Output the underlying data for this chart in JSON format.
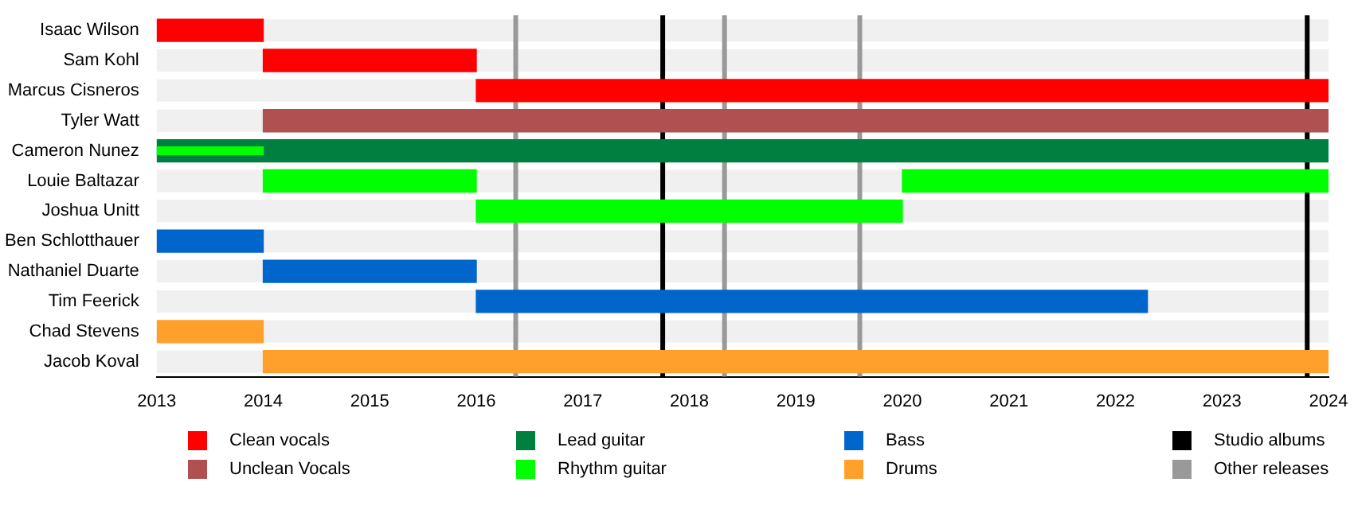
{
  "chart_data": {
    "type": "bar",
    "orientation": "horizontal",
    "legend": "bottom",
    "grid": false,
    "categories": [
      "Isaac Wilson",
      "Sam Kohl",
      "Marcus Cisneros",
      "Tyler Watt",
      "Cameron Nunez",
      "Louie Baltazar",
      "Joshua Unitt",
      "Ben Schlotthauer",
      "Nathaniel Duarte",
      "Tim Feerick",
      "Chad Stevens",
      "Jacob Koval"
    ],
    "xlim": [
      2013,
      2024
    ],
    "xticks": [
      2013,
      2014,
      2015,
      2016,
      2017,
      2018,
      2019,
      2020,
      2021,
      2022,
      2023,
      2024
    ],
    "series": [
      {
        "name": "Clean vocals",
        "color": "#ff0000",
        "base": [
          2013,
          2014,
          2016,
          null,
          null,
          null,
          null,
          null,
          null,
          null,
          null,
          null
        ],
        "values": [
          1,
          2,
          8,
          null,
          null,
          null,
          null,
          null,
          null,
          null,
          null,
          null
        ]
      },
      {
        "name": "Unclean Vocals",
        "color": "#b05050",
        "base": [
          null,
          null,
          null,
          2014,
          null,
          null,
          null,
          null,
          null,
          null,
          null,
          null
        ],
        "values": [
          null,
          null,
          null,
          10,
          null,
          null,
          null,
          null,
          null,
          null,
          null,
          null
        ]
      },
      {
        "name": "Lead guitar",
        "color": "#008040",
        "base": [
          null,
          null,
          null,
          null,
          2013,
          null,
          null,
          null,
          null,
          null,
          null,
          null
        ],
        "values": [
          null,
          null,
          null,
          null,
          11,
          null,
          null,
          null,
          null,
          null,
          null,
          null
        ]
      },
      {
        "name": "Rhythm guitar",
        "color": "#00ff00",
        "base": [
          null,
          null,
          null,
          null,
          2013,
          2014,
          2016,
          null,
          null,
          null,
          null,
          null
        ],
        "values": [
          null,
          null,
          null,
          null,
          1,
          2,
          4,
          null,
          null,
          null,
          null,
          null
        ]
      },
      {
        "color": "#00ff00",
        "base": [
          null,
          null,
          null,
          null,
          null,
          2020,
          null,
          null,
          null,
          null,
          null,
          null
        ],
        "values": [
          null,
          null,
          null,
          null,
          null,
          4,
          null,
          null,
          null,
          null,
          null,
          null
        ]
      },
      {
        "name": "Bass",
        "color": "#0066cc",
        "base": [
          null,
          null,
          null,
          null,
          null,
          null,
          null,
          2013,
          2014,
          2016,
          null,
          null
        ],
        "values": [
          null,
          null,
          null,
          null,
          null,
          null,
          null,
          1,
          2,
          6.3,
          null,
          null
        ]
      },
      {
        "name": "Drums",
        "color": "#ffa02c",
        "base": [
          null,
          null,
          null,
          null,
          null,
          null,
          null,
          null,
          null,
          null,
          2013,
          2014
        ],
        "values": [
          null,
          null,
          null,
          null,
          null,
          null,
          null,
          null,
          null,
          null,
          1,
          10
        ]
      }
    ],
    "ref_lines": [
      {
        "axis": "x",
        "value": 2017.75,
        "label": "Studio albums",
        "color": "#000000"
      },
      {
        "axis": "x",
        "value": 2023.8,
        "color": "#000000"
      },
      {
        "axis": "x",
        "value": 2016.37,
        "label": "Other releases",
        "color": "#999999"
      },
      {
        "axis": "x",
        "value": 2018.33,
        "color": "#999999"
      },
      {
        "axis": "x",
        "value": 2019.6,
        "color": "#999999"
      }
    ]
  }
}
